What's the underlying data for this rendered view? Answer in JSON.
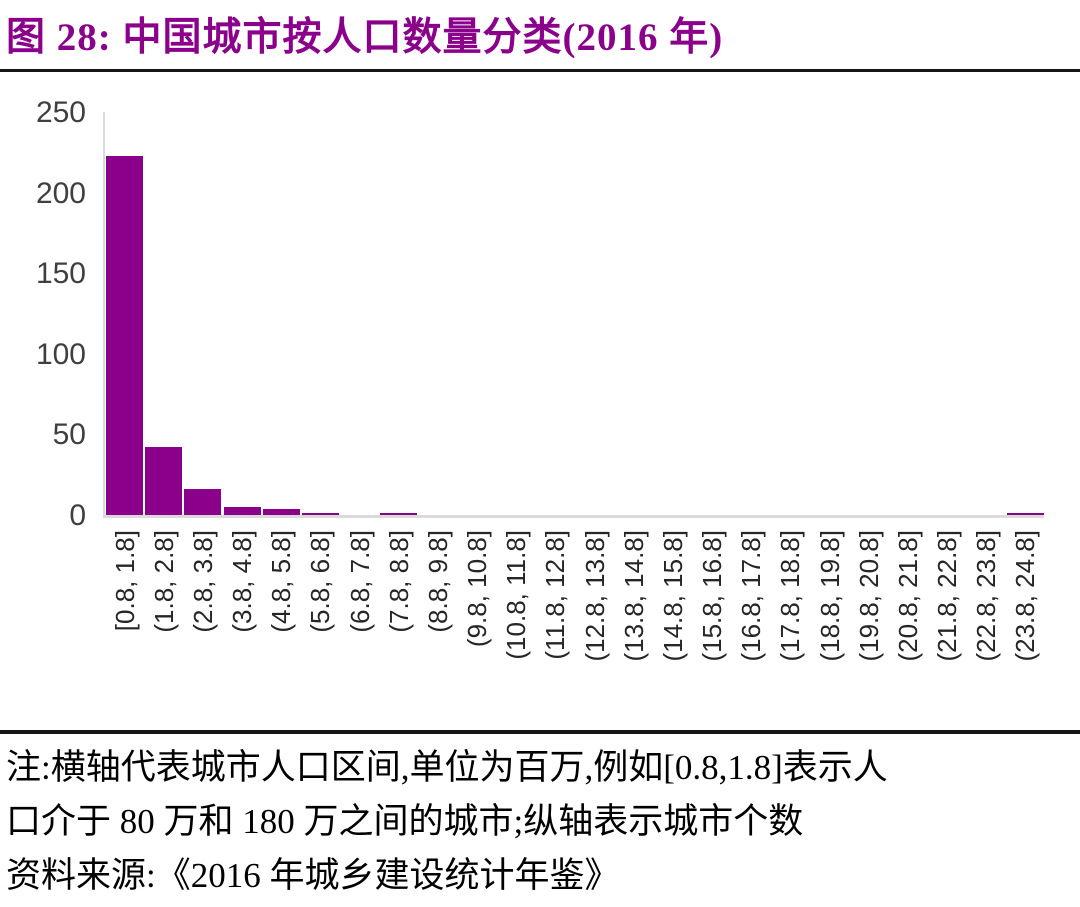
{
  "header": {
    "title": "图 28:  中国城市按人口数量分类(2016 年)"
  },
  "chart_data": {
    "type": "bar",
    "title": "图 28: 中国城市按人口数量分类(2016 年)",
    "categories": [
      "[0.8, 1.8]",
      "(1.8, 2.8]",
      "(2.8, 3.8]",
      "(3.8, 4.8]",
      "(4.8, 5.8]",
      "(5.8, 6.8]",
      "(6.8, 7.8]",
      "(7.8, 8.8]",
      "(8.8, 9.8]",
      "(9.8, 10.8]",
      "(10.8, 11.8]",
      "(11.8, 12.8]",
      "(12.8, 13.8]",
      "(13.8, 14.8]",
      "(14.8, 15.8]",
      "(15.8, 16.8]",
      "(16.8, 17.8]",
      "(17.8, 18.8]",
      "(18.8, 19.8]",
      "(19.8, 20.8]",
      "(20.8, 21.8]",
      "(21.8, 22.8]",
      "(22.8, 23.8]",
      "(23.8, 24.8]"
    ],
    "values": [
      223,
      42,
      16,
      5,
      4,
      1,
      0,
      1,
      0,
      0,
      0,
      0,
      0,
      0,
      0,
      0,
      0,
      0,
      0,
      0,
      0,
      0,
      0,
      1
    ],
    "xlabel": "",
    "ylabel": "",
    "ylim": [
      0,
      250
    ],
    "yticks": [
      0,
      50,
      100,
      150,
      200,
      250
    ],
    "grid": false,
    "legend": "none",
    "bar_color": "#8B008B",
    "axis_color": "#D9D9D9",
    "title_color": "#8B008B"
  },
  "notes": {
    "line1": "注:横轴代表城市人口区间,单位为百万,例如[0.8,1.8]表示人",
    "line2": "口介于 80 万和 180 万之间的城市;纵轴表示城市个数",
    "line3": "资料来源:《2016 年城乡建设统计年鉴》"
  }
}
